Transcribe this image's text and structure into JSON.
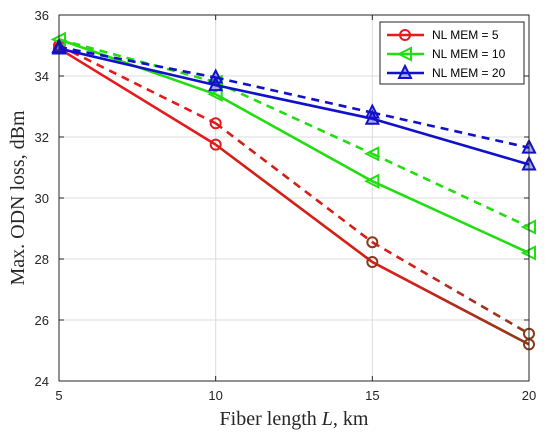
{
  "chart_data": {
    "type": "line",
    "xlabel_main": "Fiber length ",
    "xlabel_var": "L",
    "xlabel_unit": ", km",
    "ylabel": "Max. ODN loss, dBm",
    "xlim": [
      5,
      20
    ],
    "ylim": [
      24,
      36
    ],
    "xticks": [
      "5",
      "10",
      "15",
      "20"
    ],
    "yticks": [
      "24",
      "26",
      "28",
      "30",
      "32",
      "34",
      "36"
    ],
    "grid": true,
    "legend_position": "top-right",
    "x": [
      5,
      10,
      15,
      20
    ],
    "series": [
      {
        "name": "NL MEM = 5",
        "color": "#e41a1c",
        "end_color": "#8b3a1a",
        "marker": "circle",
        "solid": [
          34.9,
          31.75,
          27.9,
          25.2
        ],
        "dashed": [
          35.0,
          32.45,
          28.55,
          25.55
        ]
      },
      {
        "name": "NL MEM = 10",
        "color": "#22dd11",
        "end_color": "#22dd11",
        "marker": "triangle-left",
        "solid": [
          35.2,
          33.4,
          30.55,
          28.2
        ],
        "dashed": [
          35.2,
          33.8,
          31.45,
          29.05
        ]
      },
      {
        "name": "NL MEM = 20",
        "color": "#1111cc",
        "end_color": "#1111cc",
        "marker": "triangle-up",
        "solid": [
          34.9,
          33.7,
          32.6,
          31.1
        ],
        "dashed": [
          34.95,
          33.95,
          32.8,
          31.65
        ]
      }
    ]
  }
}
